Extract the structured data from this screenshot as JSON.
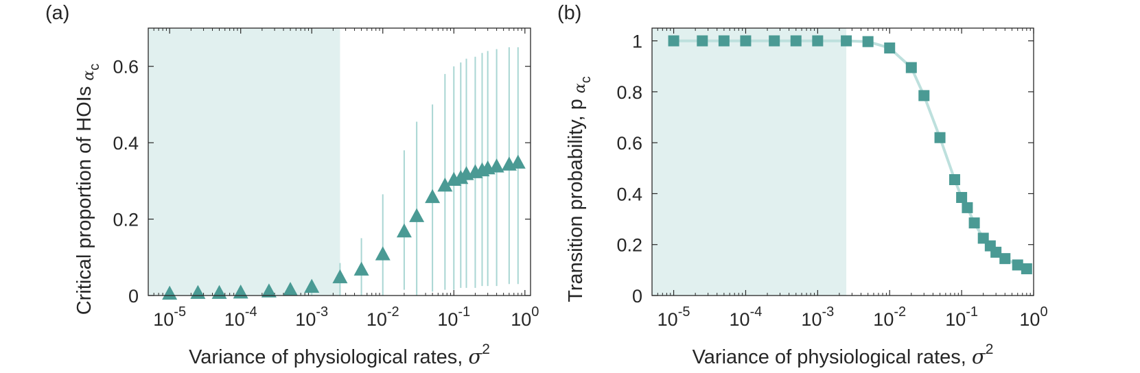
{
  "figure": {
    "colors": {
      "marker": "#4a9a94",
      "errorbar": "#a9d6d3",
      "shade": "#e1f0ef",
      "line": "#bde0dd",
      "axis": "#262626"
    }
  },
  "chart_data": [
    {
      "panel_label": "(a)",
      "type": "scatter",
      "marker": "triangle",
      "x_scale": "log",
      "xlim": [
        5e-06,
        1.2
      ],
      "ylim": [
        0,
        0.7
      ],
      "xlabel": "Variance of physiological rates,",
      "xlabel_symbol": "σ",
      "xlabel_superscript": "2",
      "ylabel": "Critical proportion of HOIs",
      "ylabel_symbol": "α",
      "ylabel_subscript": "c",
      "x_ticks": [
        {
          "value": 1e-05,
          "base": "10",
          "exp": "-5"
        },
        {
          "value": 0.0001,
          "base": "10",
          "exp": "-4"
        },
        {
          "value": 0.001,
          "base": "10",
          "exp": "-3"
        },
        {
          "value": 0.01,
          "base": "10",
          "exp": "-2"
        },
        {
          "value": 0.1,
          "base": "10",
          "exp": "-1"
        },
        {
          "value": 1,
          "base": "10",
          "exp": "0"
        }
      ],
      "y_ticks": [
        {
          "value": 0,
          "label": "0"
        },
        {
          "value": 0.2,
          "label": "0.2"
        },
        {
          "value": 0.4,
          "label": "0.4"
        },
        {
          "value": 0.6,
          "label": "0.6"
        }
      ],
      "shaded_region": {
        "x_from": 5e-06,
        "x_to": 0.0025
      },
      "points": [
        {
          "x": 1e-05,
          "y": 0.002
        },
        {
          "x": 2.5e-05,
          "y": 0.004
        },
        {
          "x": 5e-05,
          "y": 0.004
        },
        {
          "x": 0.0001,
          "y": 0.005
        },
        {
          "x": 0.00025,
          "y": 0.008
        },
        {
          "x": 0.0005,
          "y": 0.012
        },
        {
          "x": 0.001,
          "y": 0.02,
          "err_low": 0.0,
          "err_high": 0.035
        },
        {
          "x": 0.0025,
          "y": 0.045,
          "err_low": 0.0,
          "err_high": 0.085
        },
        {
          "x": 0.005,
          "y": 0.065,
          "err_low": 0.0,
          "err_high": 0.15
        },
        {
          "x": 0.01,
          "y": 0.105,
          "err_low": 0.0,
          "err_high": 0.265
        },
        {
          "x": 0.02,
          "y": 0.165,
          "err_low": 0.015,
          "err_high": 0.38
        },
        {
          "x": 0.03,
          "y": 0.205,
          "err_low": 0.0,
          "err_high": 0.455
        },
        {
          "x": 0.05,
          "y": 0.255,
          "err_low": 0.01,
          "err_high": 0.5
        },
        {
          "x": 0.075,
          "y": 0.285,
          "err_low": 0.015,
          "err_high": 0.58
        },
        {
          "x": 0.1,
          "y": 0.3,
          "err_low": 0.015,
          "err_high": 0.6
        },
        {
          "x": 0.125,
          "y": 0.305,
          "err_low": 0.02,
          "err_high": 0.61
        },
        {
          "x": 0.15,
          "y": 0.315,
          "err_low": 0.02,
          "err_high": 0.62
        },
        {
          "x": 0.2,
          "y": 0.32,
          "err_low": 0.02,
          "err_high": 0.625
        },
        {
          "x": 0.25,
          "y": 0.325,
          "err_low": 0.025,
          "err_high": 0.635
        },
        {
          "x": 0.3,
          "y": 0.33,
          "err_low": 0.025,
          "err_high": 0.64
        },
        {
          "x": 0.4,
          "y": 0.335,
          "err_low": 0.025,
          "err_high": 0.645
        },
        {
          "x": 0.6,
          "y": 0.34,
          "err_low": 0.03,
          "err_high": 0.65
        },
        {
          "x": 0.8,
          "y": 0.345,
          "err_low": 0.03,
          "err_high": 0.65
        }
      ]
    },
    {
      "panel_label": "(b)",
      "type": "line",
      "marker": "square",
      "x_scale": "log",
      "xlim": [
        5e-06,
        1.0
      ],
      "ylim": [
        0,
        1.05
      ],
      "xlabel": "Variance of physiological rates,",
      "xlabel_symbol": "σ",
      "xlabel_superscript": "2",
      "ylabel": "Transition probability, p",
      "ylabel_symbol": "α",
      "ylabel_subscript": "c",
      "x_ticks": [
        {
          "value": 1e-05,
          "base": "10",
          "exp": "-5"
        },
        {
          "value": 0.0001,
          "base": "10",
          "exp": "-4"
        },
        {
          "value": 0.001,
          "base": "10",
          "exp": "-3"
        },
        {
          "value": 0.01,
          "base": "10",
          "exp": "-2"
        },
        {
          "value": 0.1,
          "base": "10",
          "exp": "-1"
        },
        {
          "value": 1,
          "base": "10",
          "exp": "0"
        }
      ],
      "y_ticks": [
        {
          "value": 0,
          "label": "0"
        },
        {
          "value": 0.2,
          "label": "0.2"
        },
        {
          "value": 0.4,
          "label": "0.4"
        },
        {
          "value": 0.6,
          "label": "0.6"
        },
        {
          "value": 0.8,
          "label": "0.8"
        },
        {
          "value": 1,
          "label": "1"
        }
      ],
      "shaded_region": {
        "x_from": 5e-06,
        "x_to": 0.0025
      },
      "points": [
        {
          "x": 1e-05,
          "y": 1.0
        },
        {
          "x": 2.5e-05,
          "y": 1.0
        },
        {
          "x": 5e-05,
          "y": 1.0
        },
        {
          "x": 0.0001,
          "y": 1.0
        },
        {
          "x": 0.00025,
          "y": 1.0
        },
        {
          "x": 0.0005,
          "y": 1.0
        },
        {
          "x": 0.001,
          "y": 1.0
        },
        {
          "x": 0.0025,
          "y": 1.0
        },
        {
          "x": 0.005,
          "y": 0.997
        },
        {
          "x": 0.01,
          "y": 0.972
        },
        {
          "x": 0.02,
          "y": 0.895
        },
        {
          "x": 0.03,
          "y": 0.785
        },
        {
          "x": 0.05,
          "y": 0.62
        },
        {
          "x": 0.08,
          "y": 0.455
        },
        {
          "x": 0.1,
          "y": 0.385
        },
        {
          "x": 0.12,
          "y": 0.345
        },
        {
          "x": 0.15,
          "y": 0.285
        },
        {
          "x": 0.2,
          "y": 0.225
        },
        {
          "x": 0.25,
          "y": 0.195
        },
        {
          "x": 0.3,
          "y": 0.17
        },
        {
          "x": 0.4,
          "y": 0.145
        },
        {
          "x": 0.6,
          "y": 0.12
        },
        {
          "x": 0.8,
          "y": 0.105
        }
      ]
    }
  ]
}
